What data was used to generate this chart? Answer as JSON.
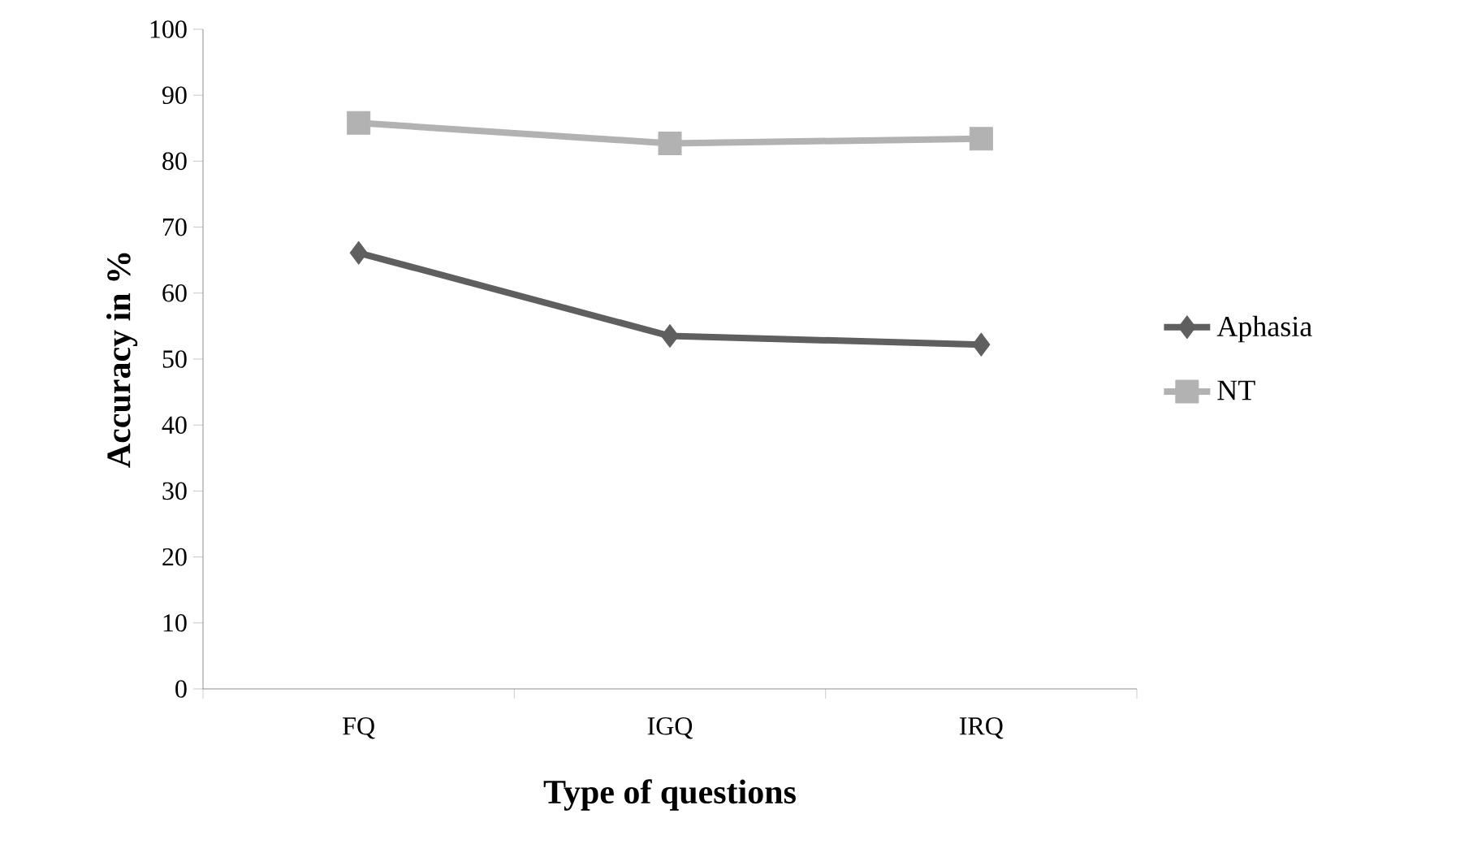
{
  "chart_data": {
    "type": "line",
    "xlabel": "Type of questions",
    "ylabel": "Accuracy in %",
    "categories": [
      "FQ",
      "IGQ",
      "IRQ"
    ],
    "series": [
      {
        "name": "Aphasia",
        "color": "#5f5f5f",
        "marker": "diamond",
        "values": [
          66.1,
          53.5,
          52.2
        ]
      },
      {
        "name": "NT",
        "color": "#b2b2b2",
        "marker": "square",
        "values": [
          85.8,
          82.7,
          83.4
        ]
      }
    ],
    "ylim": [
      0,
      100
    ],
    "yticks": [
      0,
      10,
      20,
      30,
      40,
      50,
      60,
      70,
      80,
      90,
      100
    ],
    "grid": false,
    "legend": "right",
    "line_style": "solid"
  }
}
